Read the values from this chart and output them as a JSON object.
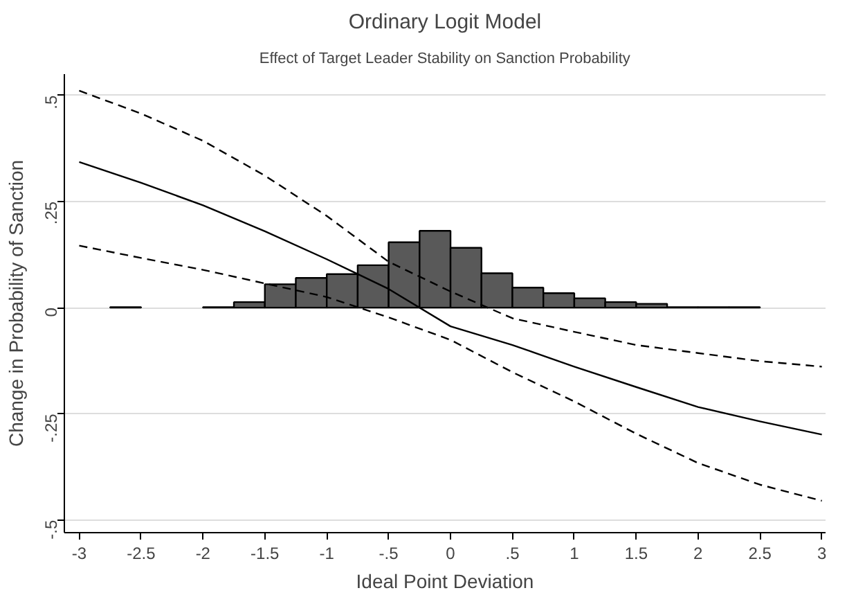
{
  "chart_data": {
    "type": "line",
    "title": "Ordinary Logit Model",
    "subtitle": "Effect of Target Leader Stability on Sanction Probability",
    "xlabel": "Ideal Point Deviation",
    "ylabel": "Change in Probability of Sanction",
    "x": [
      -3,
      -2.5,
      -2,
      -1.5,
      -1,
      -0.5,
      0,
      0.5,
      1,
      1.5,
      2,
      2.5,
      3
    ],
    "series": [
      {
        "type": "histogram",
        "color": "#595959",
        "bins": [
          -2.75,
          -2.5,
          -2.25,
          -2,
          -1.75,
          -1.5,
          -1.25,
          -1,
          -0.75,
          -0.5,
          -0.25,
          0,
          0.25,
          0.5,
          0.75,
          1,
          1.25,
          1.5,
          1.75,
          2,
          2.25,
          2.5
        ],
        "values": [
          0.001,
          null,
          null,
          0.001,
          0.013,
          0.055,
          0.07,
          0.079,
          0.1,
          0.154,
          0.181,
          0.141,
          0.081,
          0.047,
          0.034,
          0.022,
          0.013,
          0.009,
          0.001,
          0.001,
          0.001
        ]
      },
      {
        "color": "#000000",
        "line_style": "dashed",
        "values": [
          0.511,
          0.457,
          0.393,
          0.311,
          0.216,
          0.108,
          0.038,
          -0.025,
          -0.057,
          -0.088,
          -0.107,
          -0.126,
          -0.139
        ]
      },
      {
        "color": "#000000",
        "line_style": "solid",
        "values": [
          0.343,
          0.294,
          0.241,
          0.18,
          0.114,
          0.044,
          -0.044,
          -0.088,
          -0.139,
          -0.187,
          -0.234,
          -0.268,
          -0.299
        ]
      },
      {
        "color": "#000000",
        "line_style": "dashed",
        "values": [
          0.146,
          0.117,
          0.089,
          0.057,
          0.025,
          -0.023,
          -0.076,
          -0.152,
          -0.221,
          -0.297,
          -0.366,
          -0.417,
          -0.455
        ]
      }
    ],
    "xlim": [
      -3.12,
      3.03
    ],
    "ylim": [
      -0.53,
      0.55
    ],
    "xticks": [
      -3,
      {
        "value": -2.5,
        "label": "-2.5"
      },
      -2,
      {
        "value": -1.5,
        "label": "-1.5"
      },
      -1,
      {
        "value": -0.5,
        "label": "-.5"
      },
      0,
      {
        "value": 0.5,
        "label": ".5"
      },
      1,
      {
        "value": 1.5,
        "label": "1.5"
      },
      2,
      {
        "value": 2.5,
        "label": "2.5"
      },
      3
    ],
    "yticks": [
      {
        "value": -0.5,
        "label": "-.5"
      },
      {
        "value": -0.25,
        "label": "-.25"
      },
      0,
      {
        "value": 0.25,
        "label": ".25"
      },
      {
        "value": 0.5,
        "label": ".5"
      }
    ],
    "grid": "y"
  }
}
